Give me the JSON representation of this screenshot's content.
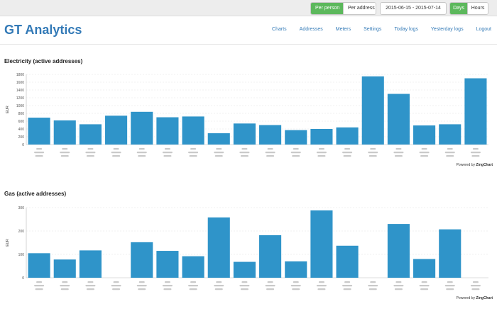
{
  "topbar": {
    "per_person": "Per person",
    "per_address": "Per address",
    "date_range": "2015-06-15 - 2015-07-14",
    "days": "Days",
    "hours": "Hours"
  },
  "header": {
    "brand": "GT Analytics",
    "nav": [
      "Charts",
      "Addresses",
      "Meters",
      "Settings",
      "Today logs",
      "Yesterday logs",
      "Logout"
    ]
  },
  "electricity": {
    "title": "Electricity (active addresses)",
    "powered_prefix": "Powered by",
    "powered_brand": "ZingChart"
  },
  "gas": {
    "title": "Gas (active addresses)",
    "powered_prefix": "Powered by",
    "powered_brand": "ZingChart"
  },
  "colors": {
    "bar": "#2f94c9",
    "accent": "#5cb85c",
    "brand": "#337ab7"
  },
  "chart_data": [
    {
      "type": "bar",
      "ylabel": "EUR",
      "ylim": [
        0,
        1800
      ],
      "yticks": [
        0,
        200,
        400,
        600,
        800,
        1000,
        1200,
        1400,
        1600,
        1800
      ],
      "grid": true,
      "values": [
        690,
        620,
        520,
        740,
        840,
        700,
        720,
        290,
        540,
        500,
        370,
        400,
        440,
        1750,
        1300,
        490,
        520,
        1700
      ]
    },
    {
      "type": "bar",
      "ylabel": "EUR",
      "ylim": [
        0,
        300
      ],
      "yticks": [
        0,
        100,
        200,
        300
      ],
      "grid": true,
      "values": [
        105,
        78,
        117,
        0,
        152,
        115,
        92,
        258,
        68,
        182,
        70,
        288,
        137,
        0,
        230,
        80,
        207,
        0
      ]
    }
  ]
}
